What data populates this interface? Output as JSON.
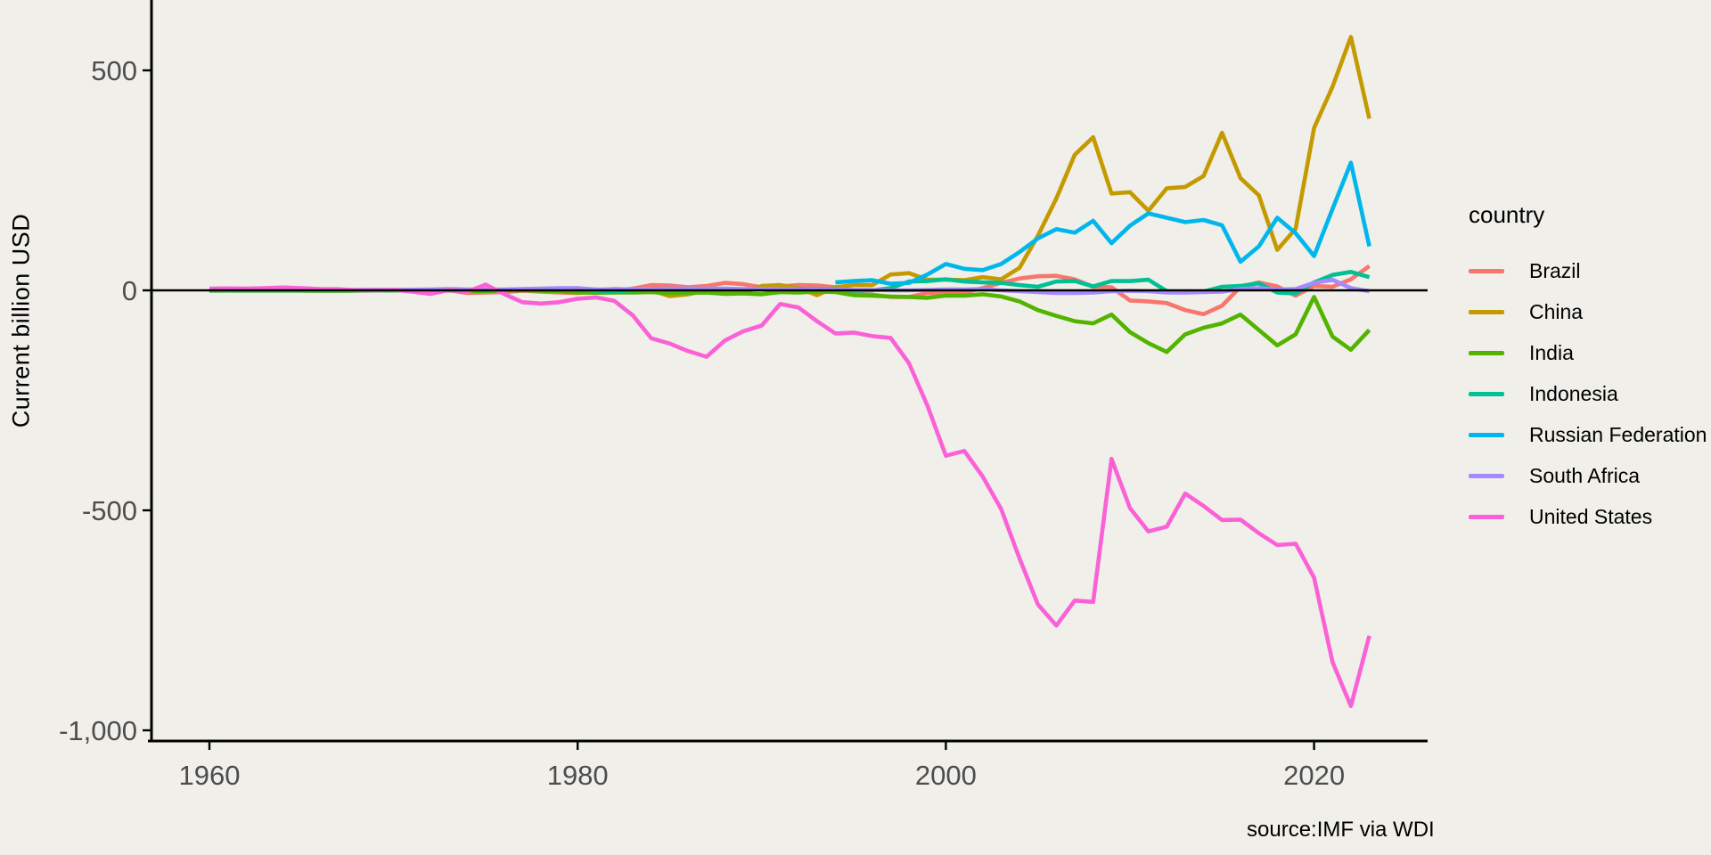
{
  "source": "source:IMF via WDI",
  "colors": {
    "background": "#F0EFE9",
    "axis_text": "#4D4D4D",
    "axis_line": "#000000",
    "zero_line": "#000000"
  },
  "chart_data": {
    "type": "line",
    "title": "",
    "xlabel": "",
    "ylabel": "Current billion USD",
    "legend_title": "country",
    "legend_position": "right",
    "grid": false,
    "xlim": [
      1957,
      2026
    ],
    "ylim": [
      -1024,
      660
    ],
    "x_ticks": {
      "values": [
        1960,
        1980,
        2000,
        2020
      ],
      "labels": [
        "1960",
        "1980",
        "2000",
        "2020"
      ]
    },
    "y_ticks": {
      "values": [
        500,
        0,
        -500,
        -1000
      ],
      "labels": [
        "500",
        "0",
        "-500",
        "-1,000"
      ]
    },
    "zero_line": 0,
    "units": "Current billion USD",
    "series": [
      {
        "name": "Brazil",
        "color": "#F8766D",
        "start_year": 1960,
        "values": [
          0.1,
          0.1,
          0.1,
          0.1,
          0.2,
          0.4,
          0.3,
          0.2,
          0.2,
          0.3,
          0.1,
          -0.8,
          -1,
          0.2,
          -6,
          -5,
          -4,
          -1,
          -3,
          -5,
          -6,
          -1,
          -2,
          4,
          12,
          11,
          7,
          10,
          17,
          14,
          7,
          9,
          12,
          11,
          7,
          -9,
          -10,
          -15,
          -15,
          -6,
          -7,
          -5,
          5,
          17,
          27,
          32,
          33,
          25,
          8,
          7,
          -23,
          -25,
          -29,
          -45,
          -54,
          -35,
          8,
          18,
          9,
          -12,
          10,
          8,
          25,
          55
        ]
      },
      {
        "name": "China",
        "color": "#C49A00",
        "start_year": 1960,
        "values": [
          0,
          0,
          0,
          0,
          0,
          0,
          0,
          0,
          0,
          0,
          0,
          0,
          0,
          -0.3,
          -0.6,
          1,
          1,
          1.5,
          -1.5,
          -2,
          -2,
          0.5,
          3,
          2,
          0,
          -13,
          -9,
          -1,
          -5,
          -6,
          10,
          12,
          5,
          -11,
          7,
          12,
          12,
          36,
          39,
          24,
          24,
          23,
          30,
          25,
          51,
          124,
          209,
          308,
          348,
          220,
          223,
          181,
          232,
          235,
          260,
          358,
          255,
          216,
          92,
          140,
          369,
          463,
          576,
          390
        ]
      },
      {
        "name": "India",
        "color": "#53B400",
        "start_year": 1960,
        "values": [
          -1,
          -0.7,
          -0.8,
          -0.8,
          -1,
          -1,
          -1.2,
          -1.3,
          -0.8,
          -0.4,
          -0.4,
          -0.6,
          -0.3,
          -0.6,
          -1.5,
          -1.6,
          0.3,
          0.5,
          -1,
          -2,
          -5,
          -5.5,
          -5,
          -5,
          -4,
          -6.5,
          -5.5,
          -5,
          -8,
          -7,
          -9,
          -4,
          -5,
          -3,
          -4,
          -11,
          -12,
          -14,
          -15,
          -17,
          -12,
          -12,
          -9,
          -14,
          -25,
          -45,
          -58,
          -70,
          -75,
          -55,
          -95,
          -120,
          -140,
          -100,
          -85,
          -75,
          -55,
          -90,
          -125,
          -100,
          -15,
          -105,
          -135,
          -90
        ]
      },
      {
        "name": "Indonesia",
        "color": "#00C094",
        "start_year": 1960,
        "values": [
          0,
          0,
          0,
          0,
          0,
          0,
          0,
          0,
          0,
          0,
          0.3,
          0.3,
          0.5,
          0.7,
          1.5,
          0.5,
          1,
          1.5,
          1.5,
          2.5,
          2,
          -1,
          -2,
          0,
          2,
          1,
          0,
          2,
          2,
          2,
          2,
          1,
          3,
          3,
          3,
          -1,
          0,
          5,
          20,
          21,
          25,
          20,
          18,
          17,
          12,
          8,
          20,
          21,
          9,
          21,
          21,
          24,
          -2,
          -4,
          -3,
          8,
          10,
          16,
          -5,
          -7,
          18,
          35,
          42,
          30
        ]
      },
      {
        "name": "Russian Federation",
        "color": "#00B6EB",
        "start_year": 1994,
        "values": [
          18,
          21,
          23,
          15,
          17,
          36,
          60,
          49,
          46,
          60,
          87,
          118,
          139,
          131,
          158,
          107,
          147,
          175,
          165,
          155,
          160,
          148,
          65,
          100,
          165,
          130,
          78,
          185,
          290,
          100
        ]
      },
      {
        "name": "South Africa",
        "color": "#A58AFF",
        "start_year": 1960,
        "values": [
          1,
          1,
          1,
          1,
          1,
          1.2,
          1,
          1,
          1,
          1.2,
          1,
          1.5,
          2,
          3,
          2,
          2,
          2,
          3,
          4,
          5,
          5,
          2,
          2,
          3,
          3,
          4,
          4,
          4,
          4,
          3,
          3,
          3,
          2,
          2,
          2,
          1,
          1,
          0,
          0,
          1,
          2,
          2,
          3,
          0,
          -2,
          -4,
          -6,
          -6,
          -5,
          -2,
          -1,
          -2,
          -5,
          -5,
          -4,
          -3,
          3,
          5,
          2,
          3,
          17,
          24,
          5,
          -2
        ]
      },
      {
        "name": "United States",
        "color": "#FB61D7",
        "start_year": 1960,
        "values": [
          4,
          4.4,
          4,
          4.9,
          6.5,
          5,
          2.9,
          2.6,
          0.1,
          0.1,
          1.2,
          -3,
          -8,
          0.5,
          -3,
          13,
          -8,
          -27,
          -30,
          -27,
          -19,
          -16,
          -24,
          -57,
          -109,
          -121,
          -138,
          -151,
          -114,
          -93,
          -80,
          -31,
          -39,
          -70,
          -98,
          -96,
          -104,
          -108,
          -166,
          -262,
          -376,
          -365,
          -423,
          -497,
          -609,
          -714,
          -762,
          -705,
          -708,
          -383,
          -495,
          -548,
          -537,
          -462,
          -490,
          -522,
          -521,
          -552,
          -579,
          -576,
          -653,
          -845,
          -945,
          -785
        ]
      }
    ]
  }
}
